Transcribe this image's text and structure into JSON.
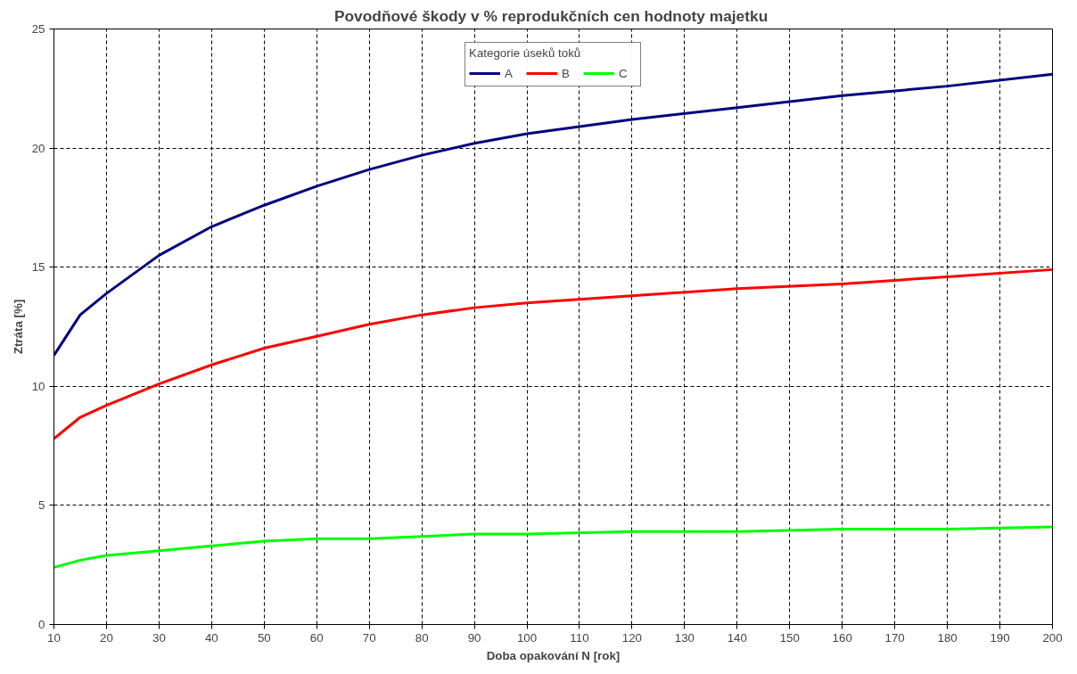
{
  "chart_data": {
    "type": "line",
    "title": "Povodňové škody  v % reprodukčních cen hodnoty majetku",
    "xlabel": "Doba opakování N [rok]",
    "ylabel": "Ztráta [%]",
    "legend_title": "Kategorie úseků toků",
    "x": [
      10,
      15,
      20,
      30,
      40,
      50,
      60,
      70,
      80,
      90,
      100,
      120,
      140,
      160,
      180,
      200
    ],
    "series": [
      {
        "name": "A",
        "color": "#000080",
        "values": [
          11.3,
          13.0,
          13.9,
          15.5,
          16.7,
          17.6,
          18.4,
          19.1,
          19.7,
          20.2,
          20.6,
          21.2,
          21.7,
          22.2,
          22.6,
          23.1
        ]
      },
      {
        "name": "B",
        "color": "#ff0000",
        "values": [
          7.8,
          8.7,
          9.2,
          10.1,
          10.9,
          11.6,
          12.1,
          12.6,
          13.0,
          13.3,
          13.5,
          13.8,
          14.1,
          14.3,
          14.6,
          14.9
        ]
      },
      {
        "name": "C",
        "color": "#00ff00",
        "values": [
          2.4,
          2.7,
          2.9,
          3.1,
          3.3,
          3.5,
          3.6,
          3.6,
          3.7,
          3.8,
          3.8,
          3.9,
          3.9,
          4.0,
          4.0,
          4.1
        ]
      }
    ],
    "xlim": [
      10,
      200
    ],
    "xticks": [
      10,
      20,
      30,
      40,
      50,
      60,
      70,
      80,
      90,
      100,
      110,
      120,
      130,
      140,
      150,
      160,
      170,
      180,
      190,
      200
    ],
    "ylim": [
      0,
      25
    ],
    "yticks": [
      0,
      5,
      10,
      15,
      20,
      25
    ],
    "grid": true,
    "legend": "top",
    "marker": "none",
    "line_style": "solid"
  }
}
